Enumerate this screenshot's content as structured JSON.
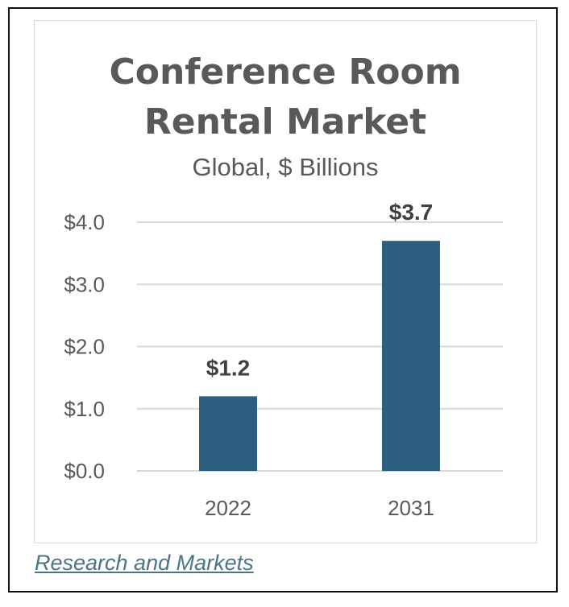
{
  "chart_data": {
    "type": "bar",
    "title": [
      "Conference Room",
      "Rental Market"
    ],
    "subtitle": "Global, $ Billions",
    "categories": [
      "2022",
      "2031"
    ],
    "values": [
      1.2,
      3.7
    ],
    "data_labels": [
      "$1.2",
      "$3.7"
    ],
    "y_ticks": [
      {
        "value": 0,
        "label": "$0.0"
      },
      {
        "value": 1,
        "label": "$1.0"
      },
      {
        "value": 2,
        "label": "$2.0"
      },
      {
        "value": 3,
        "label": "$3.0"
      },
      {
        "value": 4,
        "label": "$4.0"
      }
    ],
    "ylim": [
      0,
      4
    ],
    "grid": true,
    "legend": "none",
    "bar_color": "#2e5f7f"
  },
  "source": {
    "label": "Research and Markets"
  }
}
